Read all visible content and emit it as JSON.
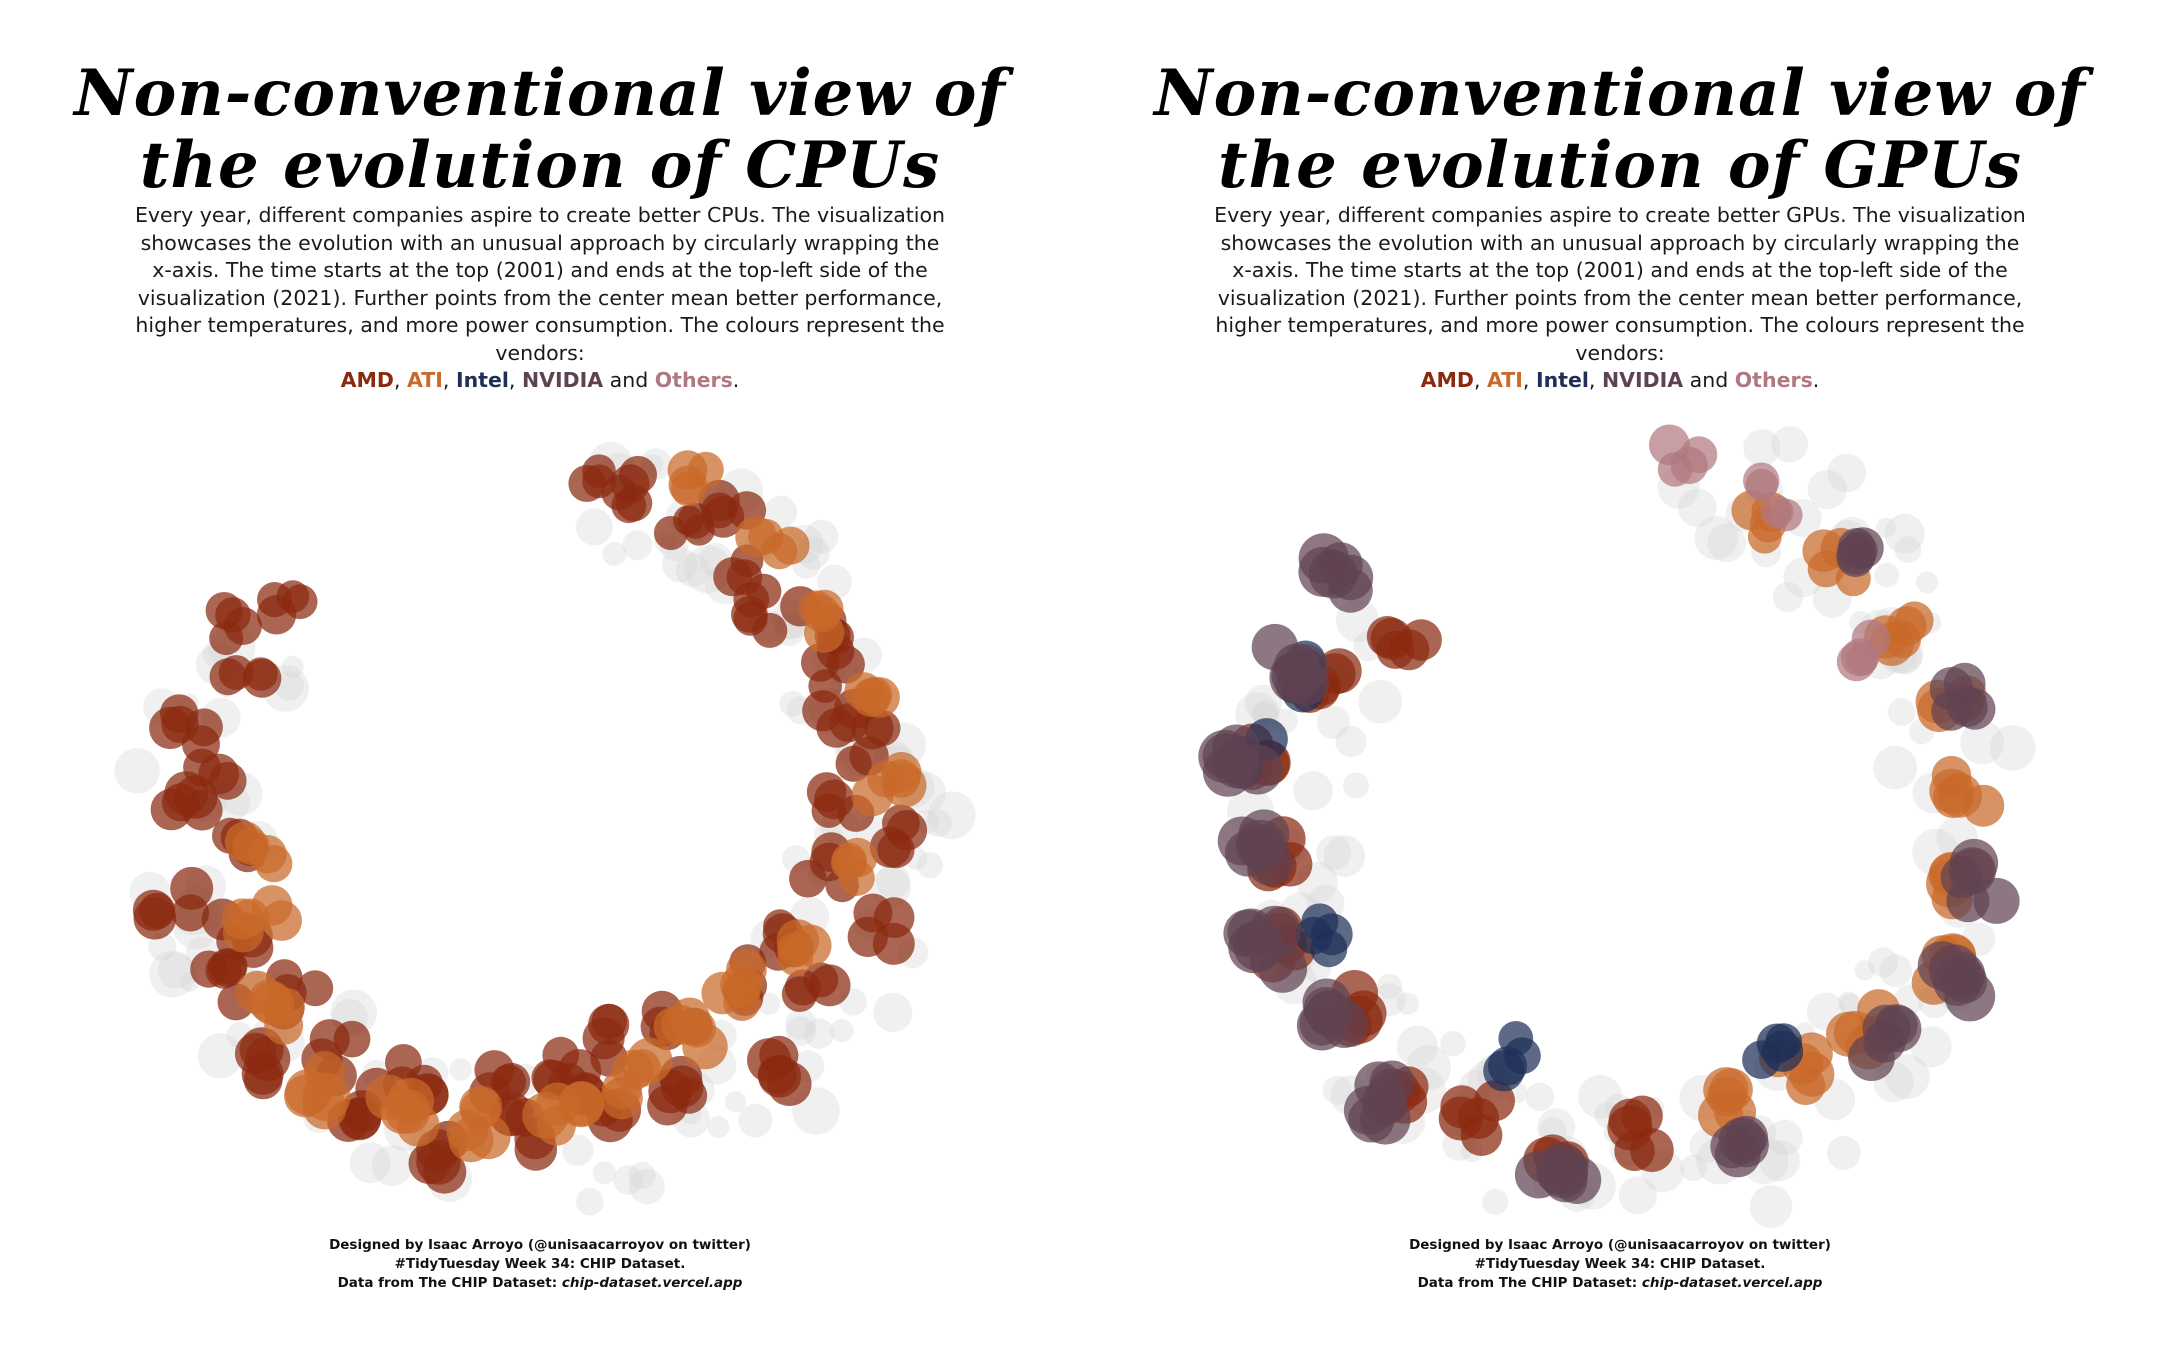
{
  "palette": {
    "amd": "#8b2a10",
    "ati": "#c96a2a",
    "intel": "#1f2f57",
    "nvidia": "#5f4252",
    "others": "#b07880",
    "background_points": "#d4d4d4"
  },
  "legend_words": {
    "amd": "AMD",
    "ati": "ATI",
    "intel": "Intel",
    "nvidia": "NVIDIA",
    "and": "and",
    "others": "Others"
  },
  "panels": [
    {
      "title_line1": "Non-conventional view of",
      "title_line2": "the evolution of CPUs",
      "subtitle": "Every year, different companies aspire to create better CPUs. The visualization showcases the evolution with an unusual approach by circularly wrapping the x-axis. The time starts at the top (2001) and ends at the top-left side of the visualization (2021). Further points from the center mean better performance, higher temperatures, and more power consumption. The colours represent the vendors:",
      "caption_line1": "Designed by Isaac Arroyo (@unisaacarroyov on twitter)",
      "caption_line2": "#TidyTuesday Week 34: CHIP Dataset.",
      "caption_line3_prefix": "Data from The CHIP Dataset:",
      "caption_line3_link": "chip-dataset.vercel.app"
    },
    {
      "title_line1": "Non-conventional view of",
      "title_line2": "the evolution of GPUs",
      "subtitle": "Every year, different companies aspire to create better GPUs. The visualization showcases the evolution with an unusual approach by circularly wrapping the x-axis. The time starts at the top (2001) and ends at the top-left side of the visualization (2021). Further points from the center mean better performance, higher temperatures, and more power consumption. The colours represent the vendors:",
      "caption_line1": "Designed by Isaac Arroyo (@unisaacarroyov on twitter)",
      "caption_line2": "#TidyTuesday Week 34: CHIP Dataset.",
      "caption_line3_prefix": "Data from The CHIP Dataset:",
      "caption_line3_link": "chip-dataset.vercel.app"
    }
  ],
  "chart_data": [
    {
      "type": "scatter",
      "coordinate_system": "polar (x-axis wrapped circularly, time runs clockwise from top)",
      "time_range": [
        2001,
        2021
      ],
      "grid": false,
      "legend": "inline in subtitle",
      "series": [
        {
          "name": "AMD",
          "color_key": "amd",
          "points": [
            [
              2001,
              0.82,
              0.5
            ],
            [
              2001.5,
              0.85,
              0.55
            ],
            [
              2002,
              0.8,
              0.45
            ],
            [
              2002.5,
              0.88,
              0.6
            ],
            [
              2003,
              0.75,
              0.5
            ],
            [
              2003.5,
              0.7,
              0.45
            ],
            [
              2004,
              0.82,
              0.55
            ],
            [
              2004.5,
              0.78,
              0.5
            ],
            [
              2005,
              0.72,
              0.55
            ],
            [
              2005.5,
              0.8,
              0.6
            ],
            [
              2006,
              0.68,
              0.5
            ],
            [
              2006.5,
              0.85,
              0.55
            ],
            [
              2007,
              0.62,
              0.5
            ],
            [
              2007.5,
              0.9,
              0.6
            ],
            [
              2008,
              0.55,
              0.55
            ],
            [
              2008.5,
              0.78,
              0.6
            ],
            [
              2009,
              0.48,
              0.55
            ],
            [
              2009.5,
              0.82,
              0.7
            ],
            [
              2010,
              0.45,
              0.6
            ],
            [
              2010.5,
              0.7,
              0.65
            ],
            [
              2011,
              0.42,
              0.6
            ],
            [
              2011.5,
              0.65,
              0.7
            ],
            [
              2012,
              0.5,
              0.65
            ],
            [
              2012.5,
              0.72,
              0.7
            ],
            [
              2013,
              0.55,
              0.6
            ],
            [
              2013.5,
              0.85,
              0.7
            ],
            [
              2014,
              0.6,
              0.65
            ],
            [
              2014.5,
              0.8,
              0.7
            ],
            [
              2015,
              0.7,
              0.6
            ],
            [
              2015.5,
              0.9,
              0.7
            ],
            [
              2016,
              0.65,
              0.55
            ],
            [
              2016.5,
              0.88,
              0.65
            ],
            [
              2017,
              0.75,
              0.6
            ],
            [
              2017.5,
              0.95,
              0.65
            ],
            [
              2018,
              0.7,
              0.6
            ],
            [
              2018.5,
              0.85,
              0.65
            ],
            [
              2019,
              0.8,
              0.6
            ],
            [
              2019.5,
              0.92,
              0.6
            ],
            [
              2020,
              0.75,
              0.55
            ],
            [
              2020.5,
              0.88,
              0.55
            ],
            [
              2021,
              0.8,
              0.5
            ]
          ]
        },
        {
          "name": "ATI",
          "color_key": "ati",
          "points": [
            [
              2002,
              0.92,
              0.6
            ],
            [
              2003,
              0.9,
              0.6
            ],
            [
              2004,
              0.88,
              0.55
            ],
            [
              2005,
              0.9,
              0.6
            ],
            [
              2006,
              0.85,
              0.65
            ],
            [
              2007,
              0.75,
              0.6
            ],
            [
              2008,
              0.6,
              0.6
            ],
            [
              2009,
              0.52,
              0.65
            ],
            [
              2010,
              0.5,
              0.7
            ],
            [
              2011,
              0.58,
              0.7
            ],
            [
              2012,
              0.62,
              0.75
            ],
            [
              2013,
              0.7,
              0.7
            ],
            [
              2014,
              0.75,
              0.75
            ],
            [
              2015,
              0.85,
              0.8
            ],
            [
              2016,
              0.78,
              0.7
            ],
            [
              2017,
              0.65,
              0.65
            ],
            [
              2018,
              0.6,
              0.6
            ]
          ]
        }
      ]
    },
    {
      "type": "scatter",
      "coordinate_system": "polar (x-axis wrapped circularly, time runs clockwise from top)",
      "time_range": [
        2001,
        2021
      ],
      "grid": false,
      "legend": "inline in subtitle",
      "series": [
        {
          "name": "AMD",
          "color_key": "amd",
          "points": [
            [
              2012,
              0.72,
              0.7
            ],
            [
              2013,
              0.82,
              0.75
            ],
            [
              2014,
              0.78,
              0.75
            ],
            [
              2015,
              0.88,
              0.8
            ],
            [
              2016,
              0.8,
              0.8
            ],
            [
              2017,
              0.9,
              0.75
            ],
            [
              2018,
              0.85,
              0.8
            ],
            [
              2019,
              0.92,
              0.75
            ],
            [
              2020,
              0.78,
              0.75
            ],
            [
              2021,
              0.6,
              0.7
            ]
          ]
        },
        {
          "name": "ATI",
          "color_key": "ati",
          "points": [
            [
              2002,
              0.78,
              0.55
            ],
            [
              2003,
              0.8,
              0.6
            ],
            [
              2004,
              0.82,
              0.65
            ],
            [
              2005,
              0.88,
              0.7
            ],
            [
              2006,
              0.85,
              0.75
            ],
            [
              2007,
              0.82,
              0.8
            ],
            [
              2008,
              0.9,
              0.8
            ],
            [
              2009,
              0.75,
              0.75
            ],
            [
              2010,
              0.7,
              0.7
            ],
            [
              2011,
              0.65,
              0.7
            ]
          ]
        },
        {
          "name": "Intel",
          "color_key": "intel",
          "points": [
            [
              2010,
              0.55,
              0.55
            ],
            [
              2014,
              0.5,
              0.55
            ],
            [
              2017,
              0.75,
              0.6
            ],
            [
              2019,
              0.95,
              0.6
            ],
            [
              2020,
              0.82,
              0.6
            ]
          ]
        },
        {
          "name": "NVIDIA",
          "color_key": "nvidia",
          "points": [
            [
              2003,
              0.85,
              0.65
            ],
            [
              2005,
              0.92,
              0.75
            ],
            [
              2007,
              0.9,
              0.85
            ],
            [
              2008,
              0.95,
              0.9
            ],
            [
              2009,
              0.85,
              0.85
            ],
            [
              2011,
              0.82,
              0.85
            ],
            [
              2013,
              0.88,
              0.9
            ],
            [
              2015,
              0.92,
              0.9
            ],
            [
              2016,
              0.85,
              0.9
            ],
            [
              2017,
              0.95,
              0.95
            ],
            [
              2018,
              0.9,
              0.9
            ],
            [
              2019,
              0.98,
              1.0
            ],
            [
              2020,
              0.9,
              0.95
            ],
            [
              2021,
              0.95,
              0.9
            ]
          ]
        },
        {
          "name": "Others",
          "color_key": "others",
          "points": [
            [
              2001,
              0.92,
              0.55
            ],
            [
              2002,
              0.88,
              0.5
            ],
            [
              2004,
              0.65,
              0.5
            ]
          ]
        }
      ]
    }
  ]
}
